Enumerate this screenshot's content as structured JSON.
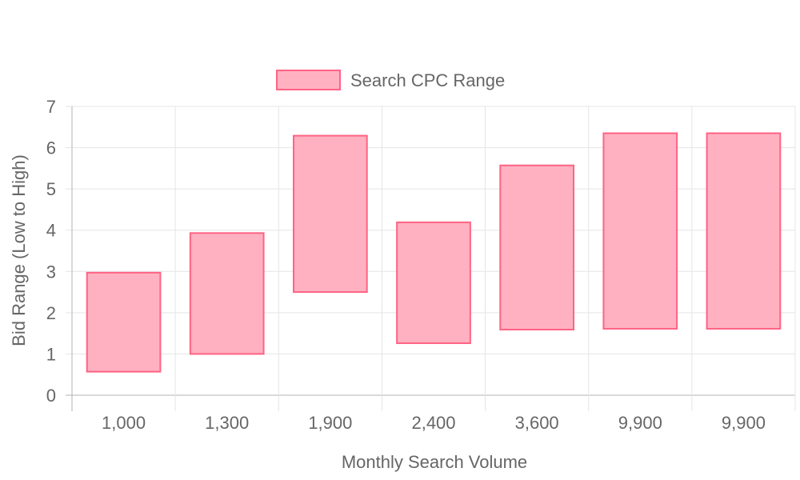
{
  "chart_data": {
    "type": "bar",
    "categories": [
      "1,000",
      "1,300",
      "1,900",
      "2,400",
      "3,600",
      "9,900",
      "9,900"
    ],
    "series": [
      {
        "name": "Search CPC Range",
        "ranges": [
          [
            0.57,
            2.97
          ],
          [
            1.0,
            3.93
          ],
          [
            2.5,
            6.29
          ],
          [
            1.26,
            4.19
          ],
          [
            1.59,
            5.57
          ],
          [
            1.61,
            6.35
          ],
          [
            1.61,
            6.35
          ]
        ],
        "fill": "#ffb1c1",
        "stroke": "#ff6384"
      }
    ],
    "xlabel": "Monthly Search Volume",
    "ylabel": "Bid Range (Low to High)",
    "ylim": [
      0,
      7
    ],
    "yticks": [
      "0",
      "1",
      "2",
      "3",
      "4",
      "5",
      "6",
      "7"
    ],
    "grid": true,
    "legend_position": "top-center"
  },
  "colors": {
    "grid": "#e5e5e5",
    "axis": "#b3b3b3",
    "text": "#666666"
  }
}
